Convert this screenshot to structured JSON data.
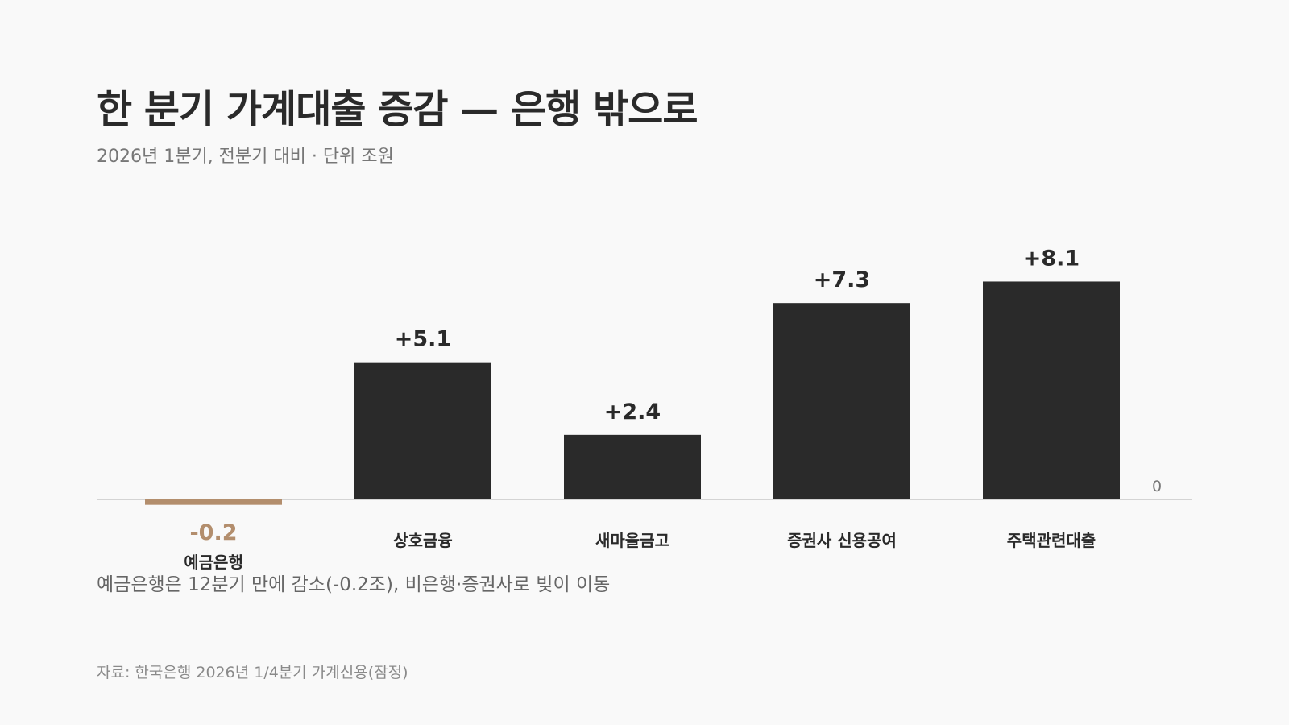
{
  "header": {
    "title": "한 분기 가계대출 증감 — 은행 밖으로",
    "subtitle": "2026년 1분기, 전분기 대비 · 단위 조원"
  },
  "note": "예금은행은 12분기 만에 감소(-0.2조), 비은행·증권사로 빚이 이동",
  "source": "자료: 한국은행 2026년 1/4분기 가계신용(잠정)",
  "colors": {
    "positive": "#2a2a2a",
    "negative": "#b38e6d",
    "baseline": "#c8c8c8"
  },
  "chart_data": {
    "type": "bar",
    "categories": [
      "예금은행",
      "상호금융",
      "새마을금고",
      "증권사 신용공여",
      "주택관련대출"
    ],
    "values": [
      -0.2,
      5.1,
      2.4,
      7.3,
      8.1
    ],
    "value_labels": [
      "-0.2",
      "+5.1",
      "+2.4",
      "+7.3",
      "+8.1"
    ],
    "zero_label": "0",
    "title": "한 분기 가계대출 증감 — 은행 밖으로",
    "xlabel": "",
    "ylabel": "",
    "grid": false,
    "legend": "none"
  }
}
